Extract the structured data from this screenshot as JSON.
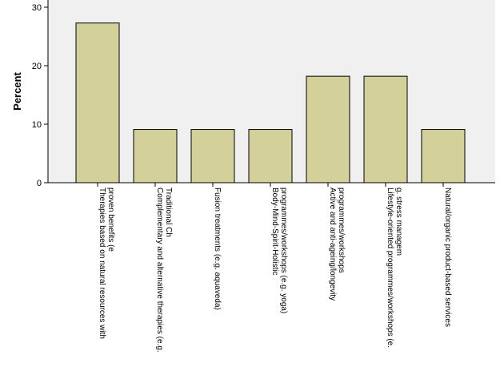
{
  "chart_data": {
    "type": "bar",
    "ylabel": "Percent",
    "xlabel": "",
    "ylim": [
      0,
      30
    ],
    "yticks": [
      0,
      10,
      20,
      30
    ],
    "grid": false,
    "bar_color": "#d4d09a",
    "plot_background": "#f0f0f0",
    "categories": [
      "Therapies based on natural resources with proven benefits (e",
      "Complementary and alternative therapies (e.g. Traditional Ch",
      "Fusion treatments (e.g. aquaveda)",
      "Body-Mind-Spirit-Holistic programmes/workshops (e.g. yoga)",
      "Active and anti-ageing/longevity programmes/workshops",
      "Lifestyle-oriented programmes/workshops (e.g. stress managem",
      "Natural/organic product-based services"
    ],
    "category_label_lines": [
      [
        "Therapies based on natural resources with",
        "proven benefits (e"
      ],
      [
        "Complementary and alternative therapies (e.g.",
        "Traditional Ch"
      ],
      [
        "Fusion treatments (e.g. aquaveda)"
      ],
      [
        "Body-Mind-Spirit-Holistic",
        "programmes/workshops (e.g. yoga)"
      ],
      [
        "Active and anti-ageing/longevity",
        "programmes/workshops"
      ],
      [
        "Lifestyle-oriented programmes/workshops (e.",
        "g. stress managem"
      ],
      [
        "Natural/organic product-based services"
      ]
    ],
    "values": [
      27.3,
      9.1,
      9.1,
      9.1,
      18.2,
      18.2,
      9.1
    ]
  }
}
